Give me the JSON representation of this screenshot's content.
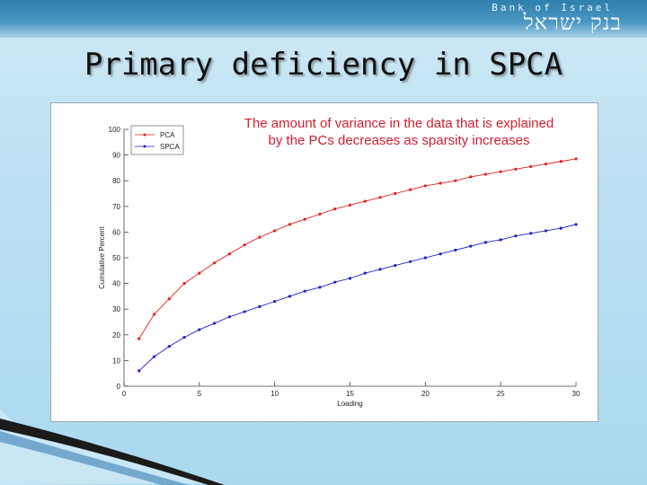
{
  "header": {
    "bank_name_en": "Bank of Israel",
    "bank_name_he": "בנק ישראל"
  },
  "slide": {
    "title": "Primary deficiency in SPCA",
    "annotation_line1": "The amount of variance in the data that is explained",
    "annotation_line2": "by the PCs decreases as sparsity increases"
  },
  "colors": {
    "pca": "#e02020",
    "spca": "#2020c8",
    "annotation": "#d02030"
  },
  "chart_data": {
    "type": "line",
    "xlabel": "Loading",
    "ylabel": "Cumulative Percent",
    "xlim": [
      0,
      30
    ],
    "ylim": [
      0,
      100
    ],
    "x_ticks": [
      0,
      5,
      10,
      15,
      20,
      25,
      30
    ],
    "y_ticks": [
      0,
      10,
      20,
      30,
      40,
      50,
      60,
      70,
      80,
      90,
      100
    ],
    "legend_placement": "top-left",
    "grid": false,
    "x": [
      1,
      2,
      3,
      4,
      5,
      6,
      7,
      8,
      9,
      10,
      11,
      12,
      13,
      14,
      15,
      16,
      17,
      18,
      19,
      20,
      21,
      22,
      23,
      24,
      25,
      26,
      27,
      28,
      29,
      30
    ],
    "series": [
      {
        "name": "PCA",
        "values": [
          18.5,
          28,
          34,
          40,
          44,
          48,
          51.5,
          55,
          58,
          60.5,
          63,
          65,
          67,
          69,
          70.5,
          72,
          73.5,
          75,
          76.5,
          78,
          79,
          80,
          81.5,
          82.5,
          83.5,
          84.5,
          85.5,
          86.5,
          87.5,
          88.5
        ]
      },
      {
        "name": "SPCA",
        "values": [
          6,
          11.5,
          15.5,
          19,
          22,
          24.5,
          27,
          29,
          31,
          33,
          35,
          37,
          38.5,
          40.5,
          42,
          44,
          45.5,
          47,
          48.5,
          50,
          51.5,
          53,
          54.5,
          56,
          57,
          58.5,
          59.5,
          60.5,
          61.5,
          63
        ]
      }
    ]
  }
}
